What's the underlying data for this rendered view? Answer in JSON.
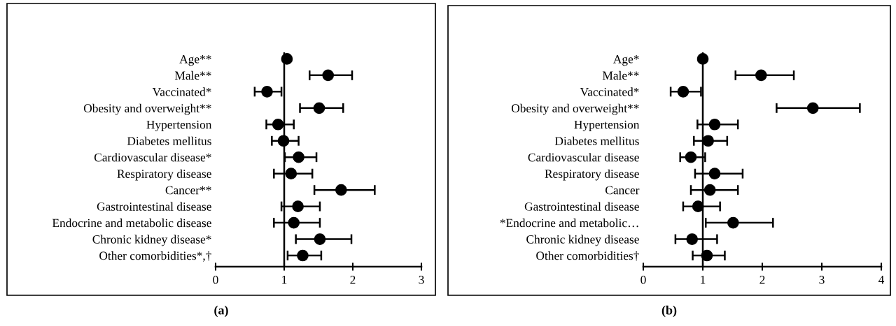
{
  "chart_data": [
    {
      "type": "scatter",
      "title": "(a)",
      "orientation": "horizontal",
      "marker": "circle",
      "grid": false,
      "legend": false,
      "categories": [
        "Age**",
        "Male**",
        "Vaccinated*",
        "Obesity and overweight**",
        "Hypertension",
        "Diabetes mellitus",
        "Cardiovascular disease*",
        "Respiratory disease",
        "Cancer**",
        "Gastrointestinal disease",
        "Endocrine and metabolic disease",
        "Chronic kidney disease*",
        "Other comorbidities*,†"
      ],
      "series": [
        {
          "color": "#000000",
          "values": [
            1.04,
            1.64,
            0.75,
            1.51,
            0.91,
            0.99,
            1.21,
            1.1,
            1.83,
            1.2,
            1.14,
            1.52,
            1.27
          ],
          "errors": [
            null,
            [
              1.37,
              1.99
            ],
            [
              0.57,
              0.96
            ],
            [
              1.23,
              1.86
            ],
            [
              0.74,
              1.14
            ],
            [
              0.82,
              1.21
            ],
            [
              1.01,
              1.47
            ],
            [
              0.85,
              1.41
            ],
            [
              1.44,
              2.32
            ],
            [
              0.96,
              1.52
            ],
            [
              0.85,
              1.52
            ],
            [
              1.17,
              1.98
            ],
            [
              1.05,
              1.54
            ]
          ]
        }
      ],
      "xlim": [
        0,
        3
      ],
      "xticks": [
        0,
        1,
        2,
        3
      ],
      "ref_lines": [
        {
          "axis": "x",
          "value": 1
        }
      ]
    },
    {
      "type": "scatter",
      "title": "(b)",
      "orientation": "horizontal",
      "marker": "circle",
      "grid": false,
      "legend": false,
      "categories": [
        "Age*",
        "Male**",
        "Vaccinated*",
        "Obesity and overweight**",
        "Hypertension",
        "Diabetes mellitus",
        "Cardiovascular disease",
        "Respiratory disease",
        "Cancer",
        "Gastrointestinal disease",
        "*Endocrine and metabolic…",
        "Chronic kidney disease",
        "Other comorbidities†"
      ],
      "series": [
        {
          "color": "#000000",
          "values": [
            1.0,
            1.98,
            0.67,
            2.85,
            1.2,
            1.09,
            0.8,
            1.2,
            1.12,
            0.92,
            1.51,
            0.82,
            1.07
          ],
          "errors": [
            null,
            [
              1.55,
              2.53
            ],
            [
              0.46,
              0.97
            ],
            [
              2.24,
              3.64
            ],
            [
              0.91,
              1.59
            ],
            [
              0.85,
              1.41
            ],
            [
              0.62,
              1.04
            ],
            [
              0.87,
              1.67
            ],
            [
              0.8,
              1.59
            ],
            [
              0.67,
              1.29
            ],
            [
              1.05,
              2.18
            ],
            [
              0.54,
              1.24
            ],
            [
              0.83,
              1.37
            ]
          ]
        }
      ],
      "xlim": [
        0,
        4
      ],
      "xticks": [
        0,
        1,
        2,
        3,
        4
      ],
      "ref_lines": [
        {
          "axis": "x",
          "value": 1
        }
      ]
    }
  ]
}
